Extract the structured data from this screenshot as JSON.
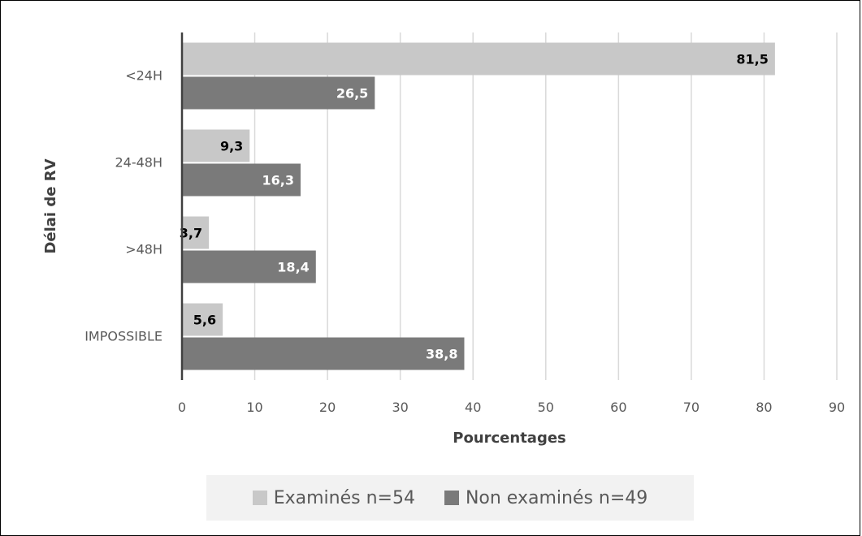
{
  "chart_data": {
    "type": "bar",
    "orientation": "horizontal",
    "title": "",
    "xlabel": "Pourcentages",
    "ylabel": "Délai de RV",
    "xlim": [
      0,
      90
    ],
    "x_ticks": [
      0,
      10,
      20,
      30,
      40,
      50,
      60,
      70,
      80,
      90
    ],
    "grid": "vertical",
    "legend_position": "bottom",
    "categories": [
      "<24H",
      "24-48H",
      ">48H",
      "IMPOSSIBLE"
    ],
    "series": [
      {
        "name": "Examinés n=54",
        "color": "#c8c8c8",
        "label_color": "#000000",
        "values": [
          81.5,
          9.3,
          3.7,
          5.6
        ],
        "labels": [
          "81,5",
          "9,3",
          "3,7",
          "5,6"
        ]
      },
      {
        "name": "Non examinés n=49",
        "color": "#7a7a7a",
        "label_color": "#ffffff",
        "values": [
          26.5,
          16.3,
          18.4,
          38.8
        ],
        "labels": [
          "26,5",
          "16,3",
          "18,4",
          "38,8"
        ]
      }
    ]
  }
}
